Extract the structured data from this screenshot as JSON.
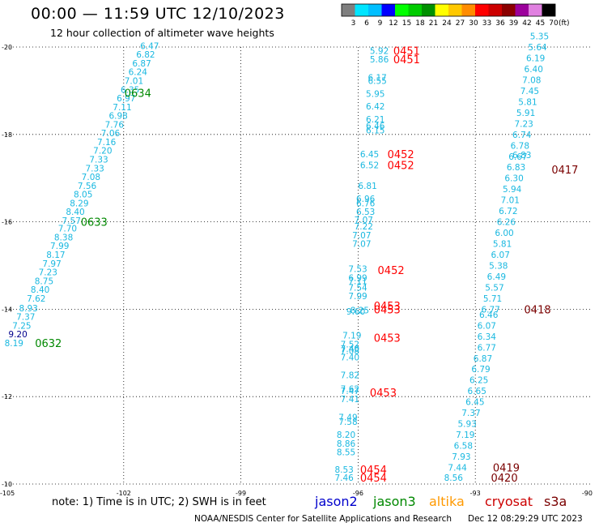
{
  "header": {
    "title": "00:00 — 11:59 UTC 12/10/2023",
    "subtitle": "12 hour collection of altimeter wave heights"
  },
  "colorbar": {
    "unit": "(ft)",
    "ticks": [
      "3",
      "6",
      "9",
      "12",
      "15",
      "18",
      "21",
      "24",
      "27",
      "30",
      "33",
      "36",
      "39",
      "42",
      "45",
      "70"
    ],
    "colors": [
      "#7f7f7f",
      "#00e5ff",
      "#00bfff",
      "#0000ff",
      "#00ff00",
      "#00cc00",
      "#009000",
      "#ffff00",
      "#ffc800",
      "#ff8c00",
      "#ff0000",
      "#cc0000",
      "#8b0000",
      "#9b009b",
      "#e080e0",
      "#000000"
    ]
  },
  "footer": {
    "note": "note:  1) Time is in UTC;  2) SWH is in feet",
    "credit": "NOAA/NESDIS Center for Satellite Applications and Research",
    "timestamp": "Dec 12 08:29:29 UTC 2023"
  },
  "satellites": [
    {
      "name": "jason2",
      "color": "#0000cc"
    },
    {
      "name": "jason3",
      "color": "#008800"
    },
    {
      "name": "altika",
      "color": "#ff9900"
    },
    {
      "name": "cryosat",
      "color": "#cc0000"
    },
    {
      "name": "s3a",
      "color": "#7a0000"
    }
  ],
  "chart_data": {
    "type": "scatter",
    "title": "00:00 — 11:59 UTC 12/10/2023",
    "subtitle": "12 hour collection of altimeter wave heights",
    "xlim": [
      -105,
      -90
    ],
    "ylim": [
      -20,
      -10
    ],
    "x_ticks": [
      "-105",
      "-102",
      "-99",
      "-96",
      "-93",
      "-90"
    ],
    "y_ticks": [
      "-10",
      "-12",
      "-14",
      "-16",
      "-18",
      "-20"
    ],
    "grid": true,
    "wave_color": "#1ab8e0",
    "wave_dark_color": "#00008b",
    "time_labels": [
      {
        "text": "0632",
        "x": -104.27,
        "y": -13.23,
        "color": "#008800"
      },
      {
        "text": "0633",
        "x": -103.1,
        "y": -16.0,
        "color": "#008800"
      },
      {
        "text": "0634",
        "x": -101.98,
        "y": -18.95,
        "color": "#008800"
      },
      {
        "text": "0454",
        "x": -95.95,
        "y": -10.15,
        "color": "#ff0000"
      },
      {
        "text": "0454",
        "x": -95.95,
        "y": -10.33,
        "color": "#ff0000"
      },
      {
        "text": "0453",
        "x": -95.7,
        "y": -12.1,
        "color": "#ff0000"
      },
      {
        "text": "0453",
        "x": -95.6,
        "y": -13.35,
        "color": "#ff0000"
      },
      {
        "text": "0453",
        "x": -95.6,
        "y": -14.0,
        "color": "#ff0000"
      },
      {
        "text": "0453",
        "x": -95.6,
        "y": -14.08,
        "color": "#ff0000"
      },
      {
        "text": "0452",
        "x": -95.5,
        "y": -14.9,
        "color": "#ff0000"
      },
      {
        "text": "0452",
        "x": -95.25,
        "y": -17.3,
        "color": "#ff0000"
      },
      {
        "text": "0452",
        "x": -95.25,
        "y": -17.55,
        "color": "#ff0000"
      },
      {
        "text": "0451",
        "x": -95.1,
        "y": -19.72,
        "color": "#ff0000"
      },
      {
        "text": "0451",
        "x": -95.1,
        "y": -19.92,
        "color": "#ff0000"
      },
      {
        "text": "0420",
        "x": -92.6,
        "y": -10.15,
        "color": "#7a0000"
      },
      {
        "text": "0419",
        "x": -92.55,
        "y": -10.38,
        "color": "#7a0000"
      },
      {
        "text": "0418",
        "x": -91.75,
        "y": -14.0,
        "color": "#7a0000"
      },
      {
        "text": "0417",
        "x": -91.05,
        "y": -17.2,
        "color": "#7a0000"
      }
    ],
    "series": [
      {
        "name": "",
        "points": [
          {
            "x": -105.05,
            "y": -13.23,
            "v": "8.19"
          },
          {
            "x": -104.95,
            "y": -13.43,
            "v": "9.20",
            "dark": true
          },
          {
            "x": -104.85,
            "y": -13.63,
            "v": "7.25"
          },
          {
            "x": -104.75,
            "y": -13.83,
            "v": "7.37"
          },
          {
            "x": -104.68,
            "y": -14.03,
            "v": "8.93"
          },
          {
            "x": -104.48,
            "y": -14.25,
            "v": "7.62"
          },
          {
            "x": -104.38,
            "y": -14.45,
            "v": "8.40"
          },
          {
            "x": -104.28,
            "y": -14.65,
            "v": "8.75"
          },
          {
            "x": -104.18,
            "y": -14.85,
            "v": "7.23"
          },
          {
            "x": -104.08,
            "y": -15.05,
            "v": "7.97"
          },
          {
            "x": -103.98,
            "y": -15.25,
            "v": "8.17"
          },
          {
            "x": -103.88,
            "y": -15.45,
            "v": "7.99"
          },
          {
            "x": -103.78,
            "y": -15.65,
            "v": "8.38"
          },
          {
            "x": -103.68,
            "y": -15.85,
            "v": "7.70"
          },
          {
            "x": -103.58,
            "y": -16.03,
            "v": "7.57"
          },
          {
            "x": -103.48,
            "y": -16.23,
            "v": "8.40"
          },
          {
            "x": -103.38,
            "y": -16.43,
            "v": "8.29"
          },
          {
            "x": -103.28,
            "y": -16.63,
            "v": "8.05"
          },
          {
            "x": -103.18,
            "y": -16.83,
            "v": "7.56"
          },
          {
            "x": -103.08,
            "y": -17.03,
            "v": "7.08"
          },
          {
            "x": -102.98,
            "y": -17.23,
            "v": "7.33"
          },
          {
            "x": -102.88,
            "y": -17.43,
            "v": "7.33"
          },
          {
            "x": -102.78,
            "y": -17.63,
            "v": "7.20"
          },
          {
            "x": -102.68,
            "y": -17.83,
            "v": "7.16"
          },
          {
            "x": -102.58,
            "y": -18.03,
            "v": "7.06"
          },
          {
            "x": -102.48,
            "y": -18.23,
            "v": "7.76"
          },
          {
            "x": -102.38,
            "y": -18.43,
            "v": "6.98"
          },
          {
            "x": -102.28,
            "y": -18.63,
            "v": "7.11"
          },
          {
            "x": -102.18,
            "y": -18.83,
            "v": "6.97"
          },
          {
            "x": -102.08,
            "y": -19.03,
            "v": "6.35"
          },
          {
            "x": -101.98,
            "y": -19.23,
            "v": "7.01"
          },
          {
            "x": -101.88,
            "y": -19.43,
            "v": "6.24"
          },
          {
            "x": -101.78,
            "y": -19.63,
            "v": "6.87"
          },
          {
            "x": -101.68,
            "y": -19.83,
            "v": "6.82"
          },
          {
            "x": -101.58,
            "y": -20.03,
            "v": "6.47"
          }
        ]
      },
      {
        "name": "",
        "points": [
          {
            "x": -96.6,
            "y": -10.15,
            "v": "7.46"
          },
          {
            "x": -96.6,
            "y": -10.33,
            "v": "8.53"
          },
          {
            "x": -96.55,
            "y": -10.73,
            "v": "8.55"
          },
          {
            "x": -96.55,
            "y": -10.93,
            "v": "8.86"
          },
          {
            "x": -96.55,
            "y": -11.13,
            "v": "8.20"
          },
          {
            "x": -96.5,
            "y": -11.43,
            "v": "7.58"
          },
          {
            "x": -96.5,
            "y": -11.53,
            "v": "7.49"
          },
          {
            "x": -96.45,
            "y": -11.95,
            "v": "7.41"
          },
          {
            "x": -96.45,
            "y": -12.13,
            "v": "7.47"
          },
          {
            "x": -96.45,
            "y": -12.18,
            "v": "7.62"
          },
          {
            "x": -96.45,
            "y": -12.5,
            "v": "7.82"
          },
          {
            "x": -96.45,
            "y": -12.9,
            "v": "7.40"
          },
          {
            "x": -96.45,
            "y": -13.05,
            "v": "7.08"
          },
          {
            "x": -96.45,
            "y": -13.1,
            "v": "7.40"
          },
          {
            "x": -96.45,
            "y": -13.2,
            "v": "7.52"
          },
          {
            "x": -96.4,
            "y": -13.4,
            "v": "7.19"
          },
          {
            "x": -96.3,
            "y": -13.95,
            "v": "9.60"
          },
          {
            "x": -96.2,
            "y": -13.98,
            "v": "8.25"
          },
          {
            "x": -96.25,
            "y": -14.3,
            "v": "7.99"
          },
          {
            "x": -96.25,
            "y": -14.5,
            "v": "7.54"
          },
          {
            "x": -96.25,
            "y": -14.65,
            "v": "7.11"
          },
          {
            "x": -96.25,
            "y": -14.72,
            "v": "6.99"
          },
          {
            "x": -96.25,
            "y": -14.93,
            "v": "7.53"
          },
          {
            "x": -96.15,
            "y": -15.5,
            "v": "7.07"
          },
          {
            "x": -96.15,
            "y": -15.7,
            "v": "7.07"
          },
          {
            "x": -96.1,
            "y": -15.9,
            "v": "7.22"
          },
          {
            "x": -96.1,
            "y": -16.05,
            "v": "7.07"
          },
          {
            "x": -96.05,
            "y": -16.23,
            "v": "6.53"
          },
          {
            "x": -96.05,
            "y": -16.43,
            "v": "6.76"
          },
          {
            "x": -96.05,
            "y": -16.53,
            "v": "6.96"
          },
          {
            "x": -96.0,
            "y": -16.83,
            "v": "6.81"
          },
          {
            "x": -95.95,
            "y": -17.3,
            "v": "6.52"
          },
          {
            "x": -95.95,
            "y": -17.55,
            "v": "6.45"
          },
          {
            "x": -95.8,
            "y": -18.1,
            "v": "6.15"
          },
          {
            "x": -95.8,
            "y": -18.2,
            "v": "6.46"
          },
          {
            "x": -95.8,
            "y": -18.35,
            "v": "6.21"
          },
          {
            "x": -95.8,
            "y": -18.65,
            "v": "6.42"
          },
          {
            "x": -95.8,
            "y": -18.93,
            "v": "5.95"
          },
          {
            "x": -95.75,
            "y": -19.23,
            "v": "6.55"
          },
          {
            "x": -95.75,
            "y": -19.3,
            "v": "6.17"
          },
          {
            "x": -95.7,
            "y": -19.72,
            "v": "5.86"
          },
          {
            "x": -95.7,
            "y": -19.92,
            "v": "5.92"
          }
        ]
      },
      {
        "name": "",
        "points": [
          {
            "x": -93.8,
            "y": -10.15,
            "v": "8.56"
          },
          {
            "x": -93.7,
            "y": -10.38,
            "v": "7.44"
          },
          {
            "x": -93.6,
            "y": -10.63,
            "v": "7.93"
          },
          {
            "x": -93.55,
            "y": -10.88,
            "v": "6.58"
          },
          {
            "x": -93.5,
            "y": -11.13,
            "v": "7.19"
          },
          {
            "x": -93.45,
            "y": -11.38,
            "v": "5.93"
          },
          {
            "x": -93.35,
            "y": -11.63,
            "v": "7.37"
          },
          {
            "x": -93.25,
            "y": -11.88,
            "v": "6.45"
          },
          {
            "x": -93.2,
            "y": -12.13,
            "v": "6.65"
          },
          {
            "x": -93.15,
            "y": -12.38,
            "v": "6.25"
          },
          {
            "x": -93.1,
            "y": -12.63,
            "v": "6.79"
          },
          {
            "x": -93.05,
            "y": -12.88,
            "v": "6.87"
          },
          {
            "x": -92.95,
            "y": -13.13,
            "v": "6.77"
          },
          {
            "x": -92.95,
            "y": -13.38,
            "v": "6.34"
          },
          {
            "x": -92.95,
            "y": -13.63,
            "v": "6.07"
          },
          {
            "x": -92.9,
            "y": -13.88,
            "v": "6.46"
          },
          {
            "x": -92.85,
            "y": -14.0,
            "v": "6.77"
          },
          {
            "x": -92.8,
            "y": -14.25,
            "v": "5.71"
          },
          {
            "x": -92.75,
            "y": -14.5,
            "v": "5.57"
          },
          {
            "x": -92.7,
            "y": -14.75,
            "v": "6.49"
          },
          {
            "x": -92.65,
            "y": -15.0,
            "v": "5.38"
          },
          {
            "x": -92.6,
            "y": -15.25,
            "v": "6.07"
          },
          {
            "x": -92.55,
            "y": -15.5,
            "v": "5.81"
          },
          {
            "x": -92.5,
            "y": -15.75,
            "v": "6.00"
          },
          {
            "x": -92.45,
            "y": -16.0,
            "v": "6.26"
          },
          {
            "x": -92.4,
            "y": -16.25,
            "v": "6.72"
          },
          {
            "x": -92.35,
            "y": -16.5,
            "v": "7.01"
          },
          {
            "x": -92.3,
            "y": -16.75,
            "v": "5.94"
          },
          {
            "x": -92.25,
            "y": -17.0,
            "v": "6.30"
          },
          {
            "x": -92.2,
            "y": -17.25,
            "v": "6.83"
          },
          {
            "x": -92.15,
            "y": -17.5,
            "v": "6.67"
          },
          {
            "x": -92.05,
            "y": -17.53,
            "v": "6.83"
          },
          {
            "x": -92.1,
            "y": -17.75,
            "v": "6.78"
          },
          {
            "x": -92.05,
            "y": -18.0,
            "v": "6.74"
          },
          {
            "x": -92.0,
            "y": -18.25,
            "v": "7.23"
          },
          {
            "x": -91.95,
            "y": -18.5,
            "v": "5.91"
          },
          {
            "x": -91.9,
            "y": -18.75,
            "v": "5.81"
          },
          {
            "x": -91.85,
            "y": -19.0,
            "v": "7.45"
          },
          {
            "x": -91.8,
            "y": -19.25,
            "v": "7.08"
          },
          {
            "x": -91.75,
            "y": -19.5,
            "v": "6.40"
          },
          {
            "x": -91.7,
            "y": -19.75,
            "v": "6.19"
          },
          {
            "x": -91.65,
            "y": -20.0,
            "v": "5.64"
          },
          {
            "x": -91.6,
            "y": -20.25,
            "v": "5.35"
          }
        ]
      }
    ]
  }
}
